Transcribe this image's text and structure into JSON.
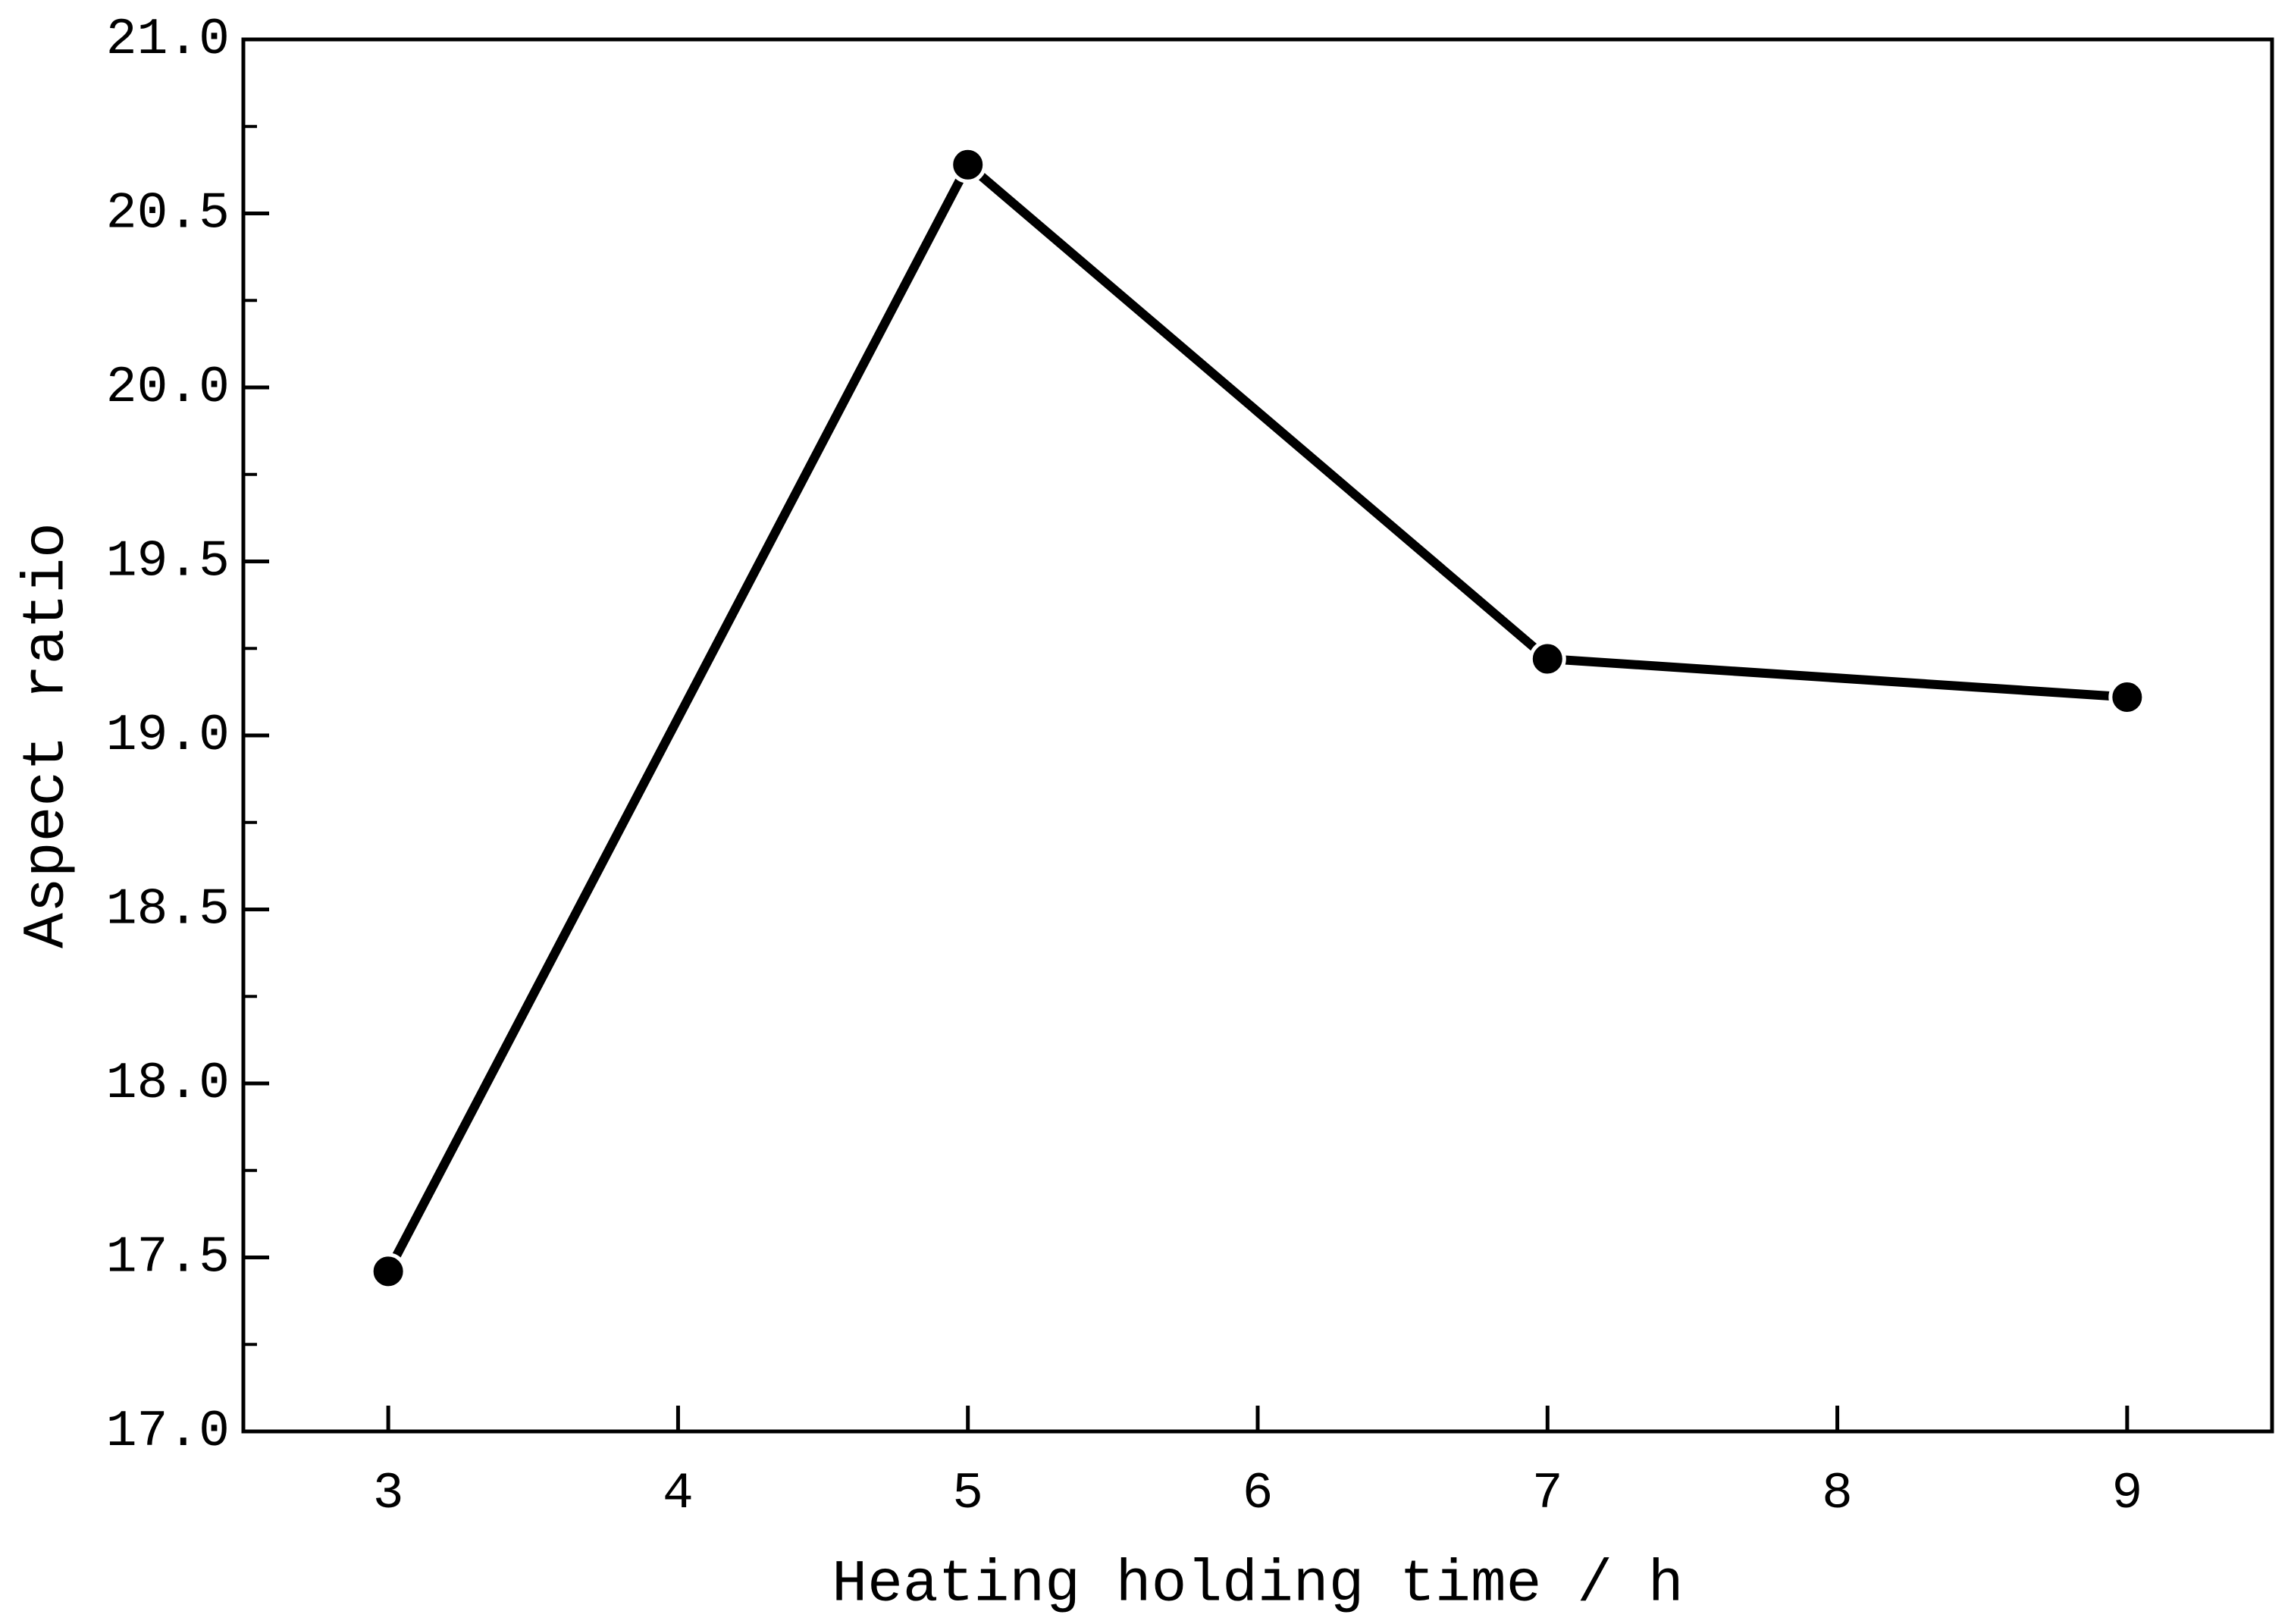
{
  "chart_data": {
    "type": "line",
    "x_label": "Heating holding time / h",
    "y_label": "Aspect ratio",
    "x": [
      3,
      5,
      7,
      9
    ],
    "series": [
      {
        "color": "#000000",
        "values": [
          17.46,
          20.64,
          19.22,
          19.11
        ]
      }
    ],
    "xlim": [
      2.5,
      9.5
    ],
    "xticks": [
      3,
      4,
      5,
      6,
      7,
      8,
      9
    ],
    "ylim": [
      17,
      21
    ],
    "yticks": [
      {
        "value": 17,
        "label": "17.0"
      },
      {
        "value": 17.5,
        "label": "17.5"
      },
      {
        "value": 18,
        "label": "18.0"
      },
      {
        "value": 18.5,
        "label": "18.5"
      },
      {
        "value": 19,
        "label": "19.0"
      },
      {
        "value": 19.5,
        "label": "19.5"
      },
      {
        "value": 20,
        "label": "20.0"
      },
      {
        "value": 20.5,
        "label": "20.5"
      },
      {
        "value": 21,
        "label": "21.0"
      }
    ],
    "yminorticks": [
      17.25,
      17.75,
      18.25,
      18.75,
      19.25,
      19.75,
      20.25,
      20.75
    ],
    "grid": false
  }
}
